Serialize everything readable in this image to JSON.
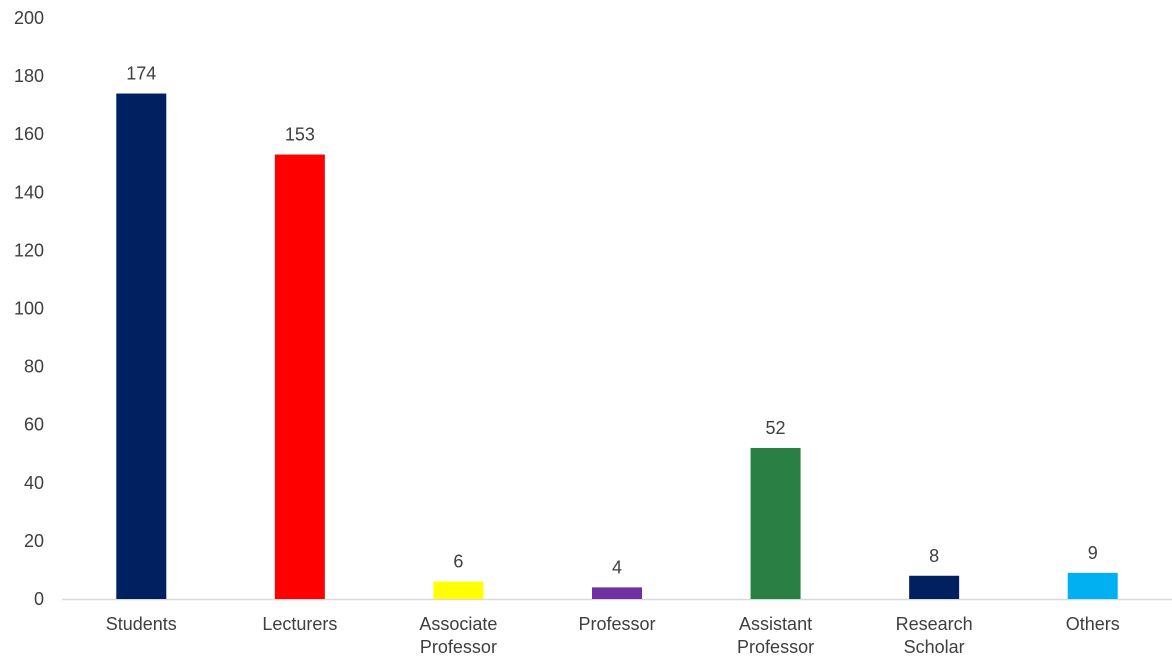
{
  "chart_data": {
    "type": "bar",
    "title": "",
    "xlabel": "",
    "ylabel": "",
    "categories": [
      [
        "Students"
      ],
      [
        "Lecturers"
      ],
      [
        "Associate",
        "Professor"
      ],
      [
        "Professor"
      ],
      [
        "Assistant",
        "Professor"
      ],
      [
        "Research",
        "Scholar"
      ],
      [
        "Others"
      ]
    ],
    "values": [
      174,
      153,
      6,
      4,
      52,
      8,
      9
    ],
    "data_labels": [
      "174",
      "153",
      "6",
      "4",
      "52",
      "8",
      "9"
    ],
    "colors": [
      "#002060",
      "#ff0000",
      "#ffff00",
      "#7030a0",
      "#2a8044",
      "#002060",
      "#00b0f0"
    ],
    "ylim": [
      0,
      200
    ],
    "yticks": [
      "0",
      "20",
      "40",
      "60",
      "80",
      "100",
      "120",
      "140",
      "160",
      "180",
      "200"
    ],
    "grid": false,
    "legend": "none"
  }
}
